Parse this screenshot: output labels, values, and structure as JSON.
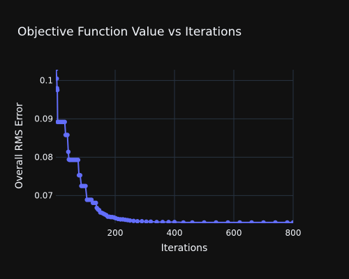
{
  "chart_data": {
    "type": "line",
    "title": "Objective Function Value vs Iterations",
    "xlabel": "Iterations",
    "ylabel": "Overall RMS Error",
    "xlim": [
      0,
      800
    ],
    "ylim": [
      0.0628,
      0.1028
    ],
    "xticks": [
      200,
      400,
      600,
      800
    ],
    "xtick_labels": [
      "200",
      "400",
      "600",
      "800"
    ],
    "yticks": [
      0.07,
      0.08,
      0.09,
      0.1
    ],
    "ytick_labels": [
      "0.07",
      "0.08",
      "0.09",
      "0.1"
    ],
    "grid": true,
    "legend": "none",
    "colors": {
      "background": "#111111",
      "grid": "#283442",
      "line": "#636efa",
      "text": "#f2f5fa"
    },
    "series": [
      {
        "values_x": [
          1,
          3,
          4,
          5,
          6,
          8,
          10,
          14,
          18,
          22,
          26,
          30,
          33,
          36,
          39,
          42,
          44,
          46,
          50,
          55,
          60,
          65,
          70,
          75,
          78,
          82,
          86,
          90,
          95,
          100,
          105,
          108,
          112,
          116,
          120,
          125,
          130,
          135,
          138,
          142,
          146,
          150,
          155,
          160,
          165,
          170,
          175,
          180,
          185,
          190,
          196,
          202,
          210,
          218,
          226,
          234,
          242,
          250,
          262,
          275,
          290,
          305,
          320,
          340,
          360,
          380,
          400,
          430,
          460,
          500,
          540,
          580,
          620,
          660,
          700,
          740,
          780,
          800
        ],
        "values_y": [
          0.103,
          0.1005,
          0.098,
          0.0975,
          0.0892,
          0.0892,
          0.0892,
          0.0892,
          0.0892,
          0.0892,
          0.0892,
          0.0892,
          0.0858,
          0.0858,
          0.0858,
          0.0814,
          0.0794,
          0.0793,
          0.0793,
          0.0793,
          0.0793,
          0.0793,
          0.0793,
          0.0793,
          0.0753,
          0.0753,
          0.0725,
          0.0725,
          0.0725,
          0.0725,
          0.0689,
          0.0689,
          0.0689,
          0.0689,
          0.0689,
          0.0681,
          0.0681,
          0.0681,
          0.0668,
          0.0664,
          0.0662,
          0.0656,
          0.0655,
          0.0653,
          0.0651,
          0.0649,
          0.0645,
          0.0645,
          0.0644,
          0.0644,
          0.0643,
          0.0641,
          0.0639,
          0.0638,
          0.0638,
          0.0637,
          0.0636,
          0.0635,
          0.0634,
          0.0633,
          0.0633,
          0.0632,
          0.0632,
          0.0631,
          0.0631,
          0.0631,
          0.0631,
          0.063,
          0.063,
          0.063,
          0.063,
          0.063,
          0.063,
          0.063,
          0.063,
          0.063,
          0.063,
          0.063
        ]
      }
    ]
  }
}
